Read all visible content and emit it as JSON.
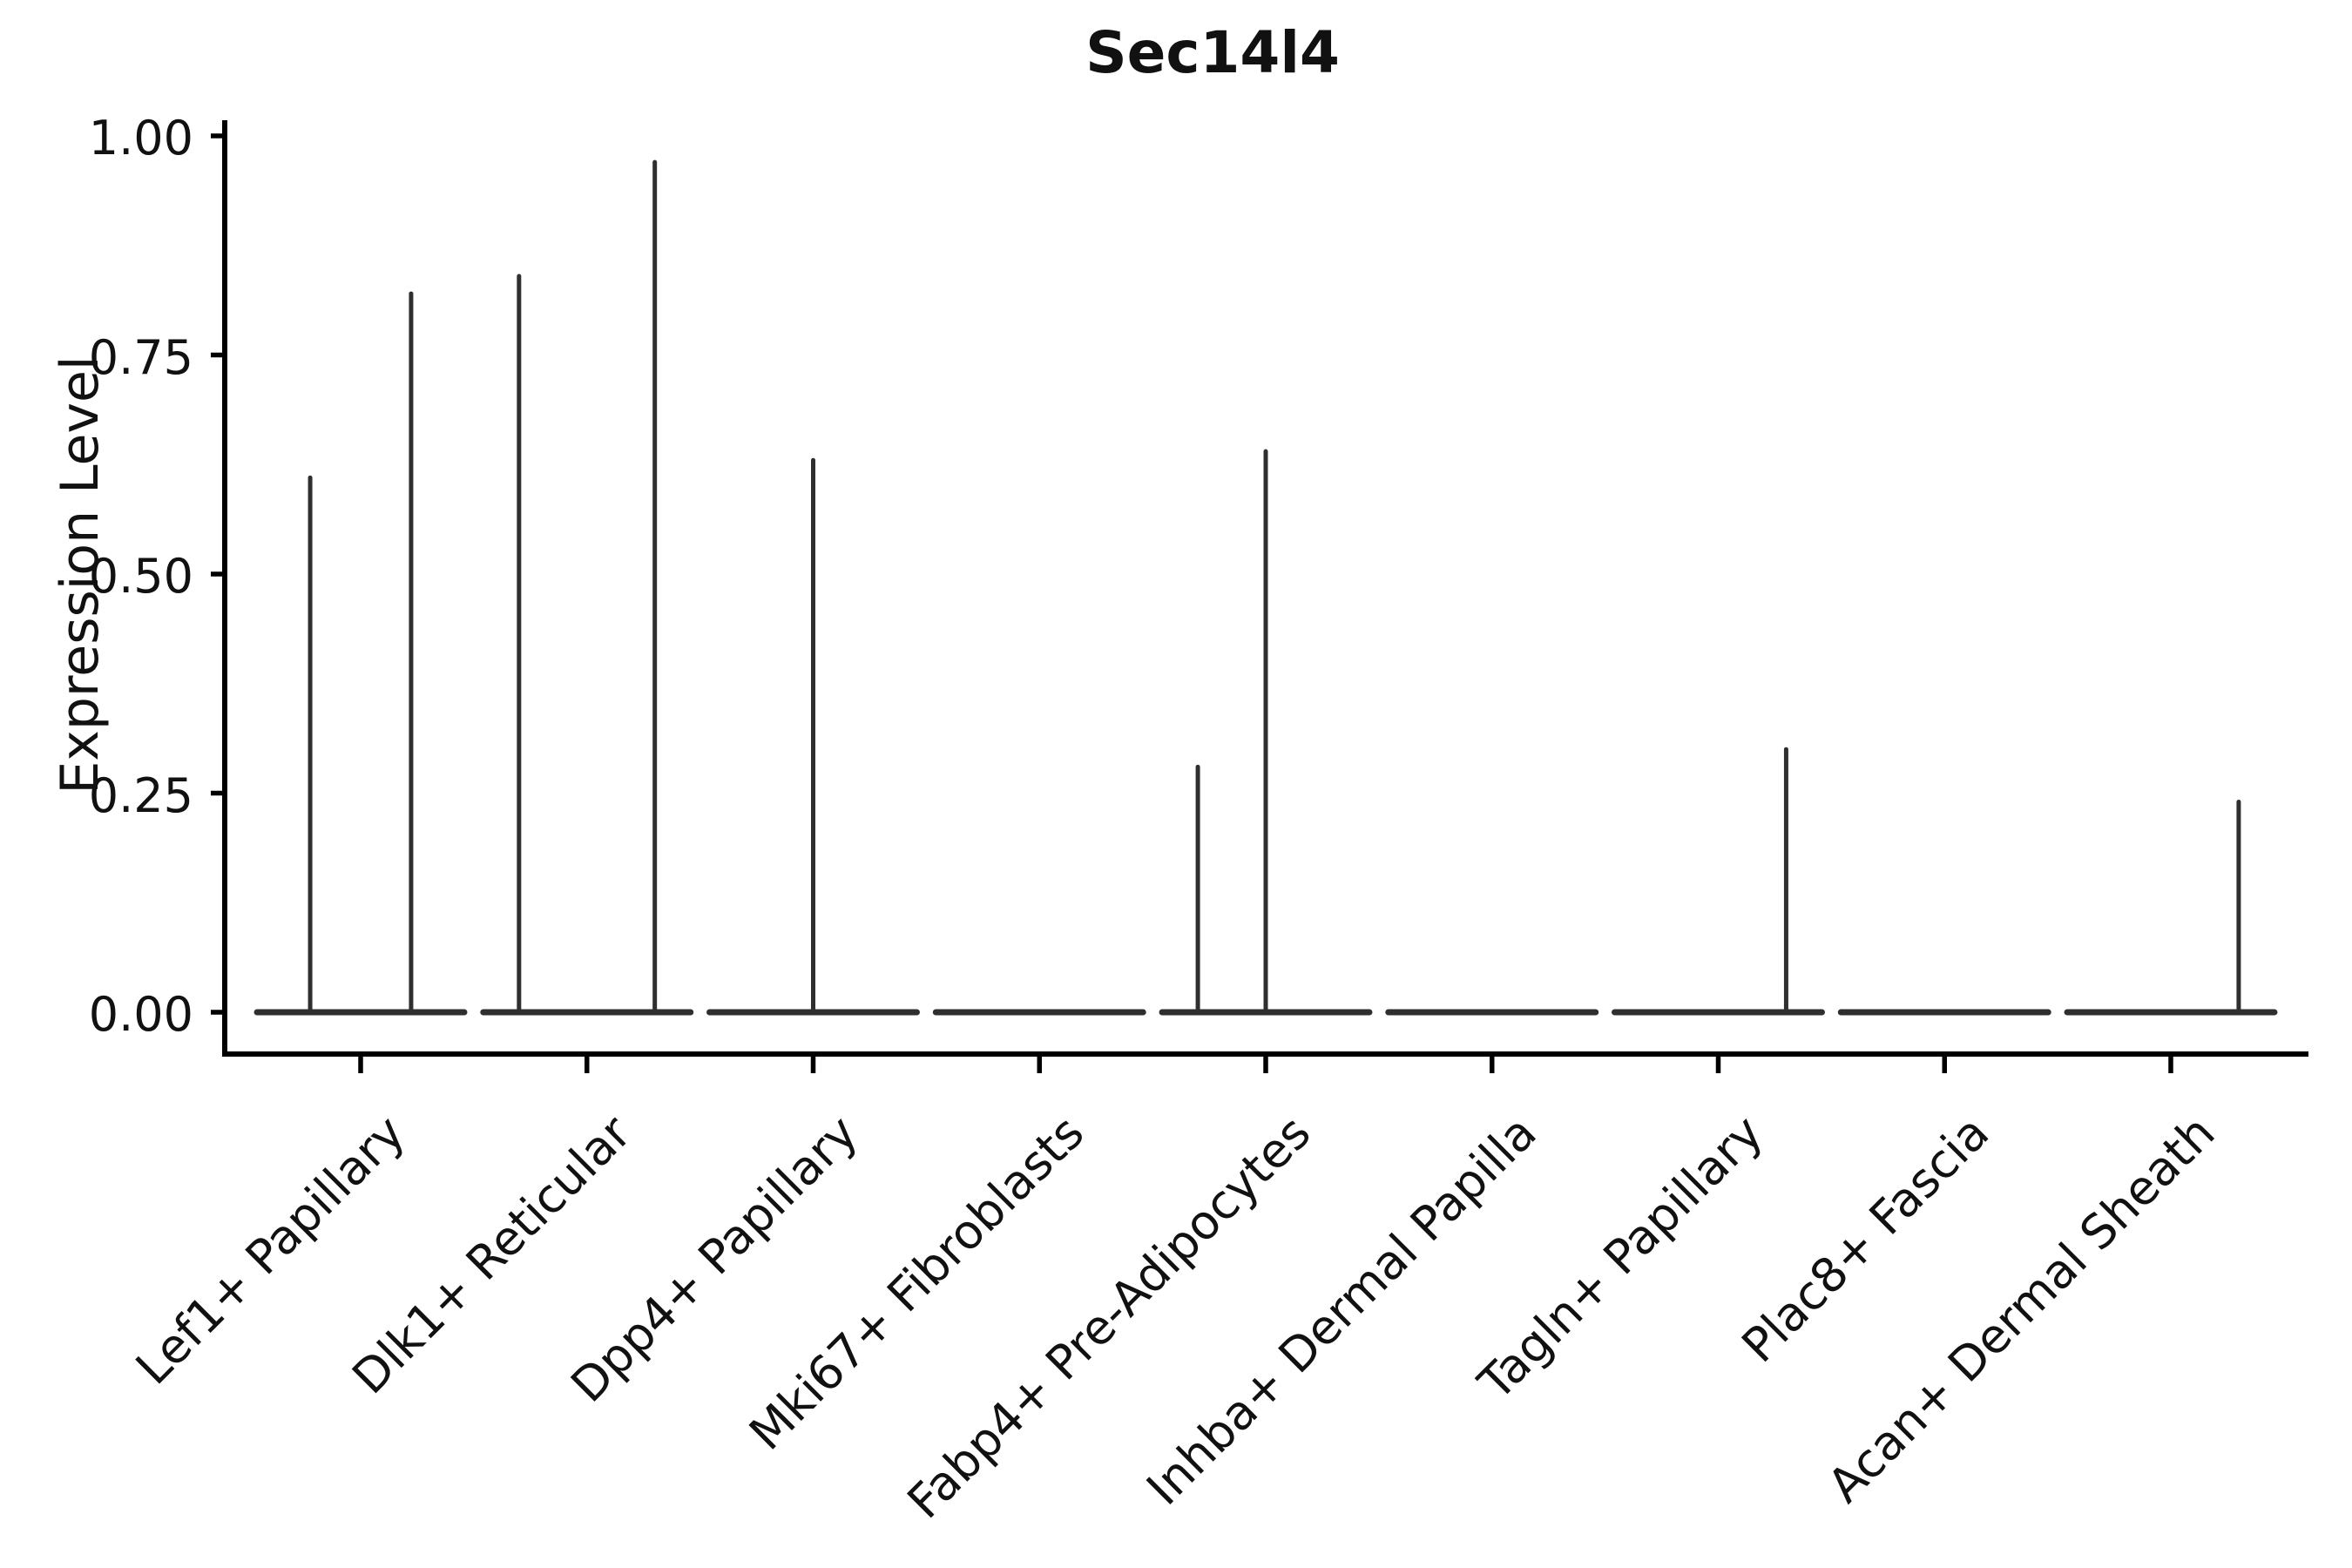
{
  "chart_data": {
    "type": "violin",
    "title": "Sec14l4",
    "ylabel": "Expression Level",
    "xlabel": "",
    "ylim": [
      0,
      1
    ],
    "ytick_values": [
      0,
      0.25,
      0.5,
      0.75,
      1.0
    ],
    "ytick_labels": [
      "0.00",
      "0.25",
      "0.50",
      "0.75",
      "1.00"
    ],
    "grid": false,
    "legend": "none",
    "style": {
      "background": "#ffffff",
      "violin_color": "#2f2f2f",
      "axis_color": "#000000",
      "text_color": "#111111",
      "title_bold": true
    },
    "categories": [
      "Lef1+ Papillary",
      "Dlk1+ Reticular",
      "Dpp4+ Papillary",
      "Mki67+ Fibroblasts",
      "Fabp4+ Pre-Adipocytes",
      "Inhba+ Dermal Papilla",
      "Tagln+ Papillary",
      "Plac8+ Fascia",
      "Acan+ Dermal Sheath"
    ],
    "violins": [
      {
        "category": "Lef1+ Papillary",
        "base_halfwidth_frac": 0.458,
        "spikes": [
          {
            "offset_frac": -0.223,
            "max_value": 0.61
          },
          {
            "offset_frac": 0.223,
            "max_value": 0.82
          }
        ]
      },
      {
        "category": "Dlk1+ Reticular",
        "base_halfwidth_frac": 0.458,
        "spikes": [
          {
            "offset_frac": -0.3,
            "max_value": 0.84
          },
          {
            "offset_frac": 0.3,
            "max_value": 0.97
          }
        ]
      },
      {
        "category": "Dpp4+ Papillary",
        "base_halfwidth_frac": 0.458,
        "spikes": [
          {
            "offset_frac": 0.0,
            "max_value": 0.63
          }
        ]
      },
      {
        "category": "Mki67+ Fibroblasts",
        "base_halfwidth_frac": 0.458,
        "spikes": []
      },
      {
        "category": "Fabp4+ Pre-Adipocytes",
        "base_halfwidth_frac": 0.458,
        "spikes": [
          {
            "offset_frac": -0.3,
            "max_value": 0.28
          },
          {
            "offset_frac": 0.0,
            "max_value": 0.64
          }
        ]
      },
      {
        "category": "Inhba+ Dermal Papilla",
        "base_halfwidth_frac": 0.458,
        "spikes": []
      },
      {
        "category": "Tagln+ Papillary",
        "base_halfwidth_frac": 0.458,
        "spikes": [
          {
            "offset_frac": 0.3,
            "max_value": 0.3
          }
        ]
      },
      {
        "category": "Plac8+ Fascia",
        "base_halfwidth_frac": 0.458,
        "spikes": []
      },
      {
        "category": "Acan+ Dermal Sheath",
        "base_halfwidth_frac": 0.458,
        "spikes": [
          {
            "offset_frac": 0.3,
            "max_value": 0.24
          }
        ]
      }
    ],
    "description": "Violin plot of gene expression; most cells at zero (flat base strips) with thin density spikes reaching each group's maximum expression."
  }
}
